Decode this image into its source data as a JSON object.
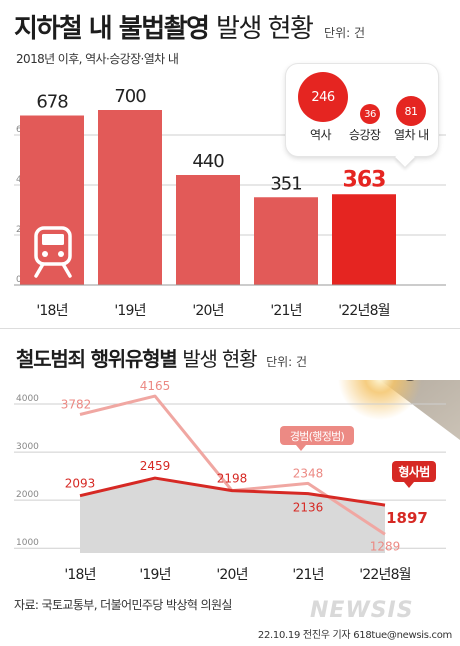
{
  "header": {
    "title_bold": "지하철 내 불법촬영",
    "title_light": "발생 현황",
    "unit": "단위: 건",
    "subtitle": "2018년 이후, 역사·승강장·열차 내"
  },
  "breakdown": {
    "items": [
      {
        "label": "역사",
        "value": "246"
      },
      {
        "label": "승강장",
        "value": "36"
      },
      {
        "label": "열차 내",
        "value": "81"
      }
    ]
  },
  "section2": {
    "title_bold": "철도범죄 행위유형별",
    "title_light": "발생 현황",
    "unit": "단위: 건"
  },
  "footer": {
    "source": "자료: 국토교통부, 더불어민주당 박상혁 의원실",
    "credit": "22.10.19 전진우 기자 618tue@newsis.com",
    "watermark": "NEWSIS"
  },
  "chart_data": [
    {
      "type": "bar",
      "categories": [
        "'18년",
        "'19년",
        "'20년",
        "'21년",
        "'22년8월"
      ],
      "values": [
        678,
        700,
        440,
        351,
        363
      ],
      "highlight_index": 4,
      "yticks": [
        0,
        200,
        400,
        600
      ],
      "ylim": [
        0,
        800
      ],
      "grid": true,
      "colors": {
        "bar": "#e25a58",
        "highlight": "#e52521",
        "label": "#222222",
        "highlight_label": "#e52521"
      }
    },
    {
      "type": "line",
      "categories": [
        "'18년",
        "'19년",
        "'20년",
        "'21년",
        "'22년8월"
      ],
      "series": [
        {
          "name": "형사범",
          "values": [
            2093,
            2459,
            2198,
            2136,
            1897
          ],
          "color": "#d62924"
        },
        {
          "name": "경범(행정범)",
          "values": [
            3782,
            4165,
            2198,
            2348,
            1289
          ],
          "color": "#f0a7a2"
        }
      ],
      "yticks": [
        1000,
        2000,
        3000,
        4000
      ],
      "ylim": [
        900,
        4500
      ],
      "grid": true,
      "area_fill": "#d9d9d9"
    }
  ]
}
